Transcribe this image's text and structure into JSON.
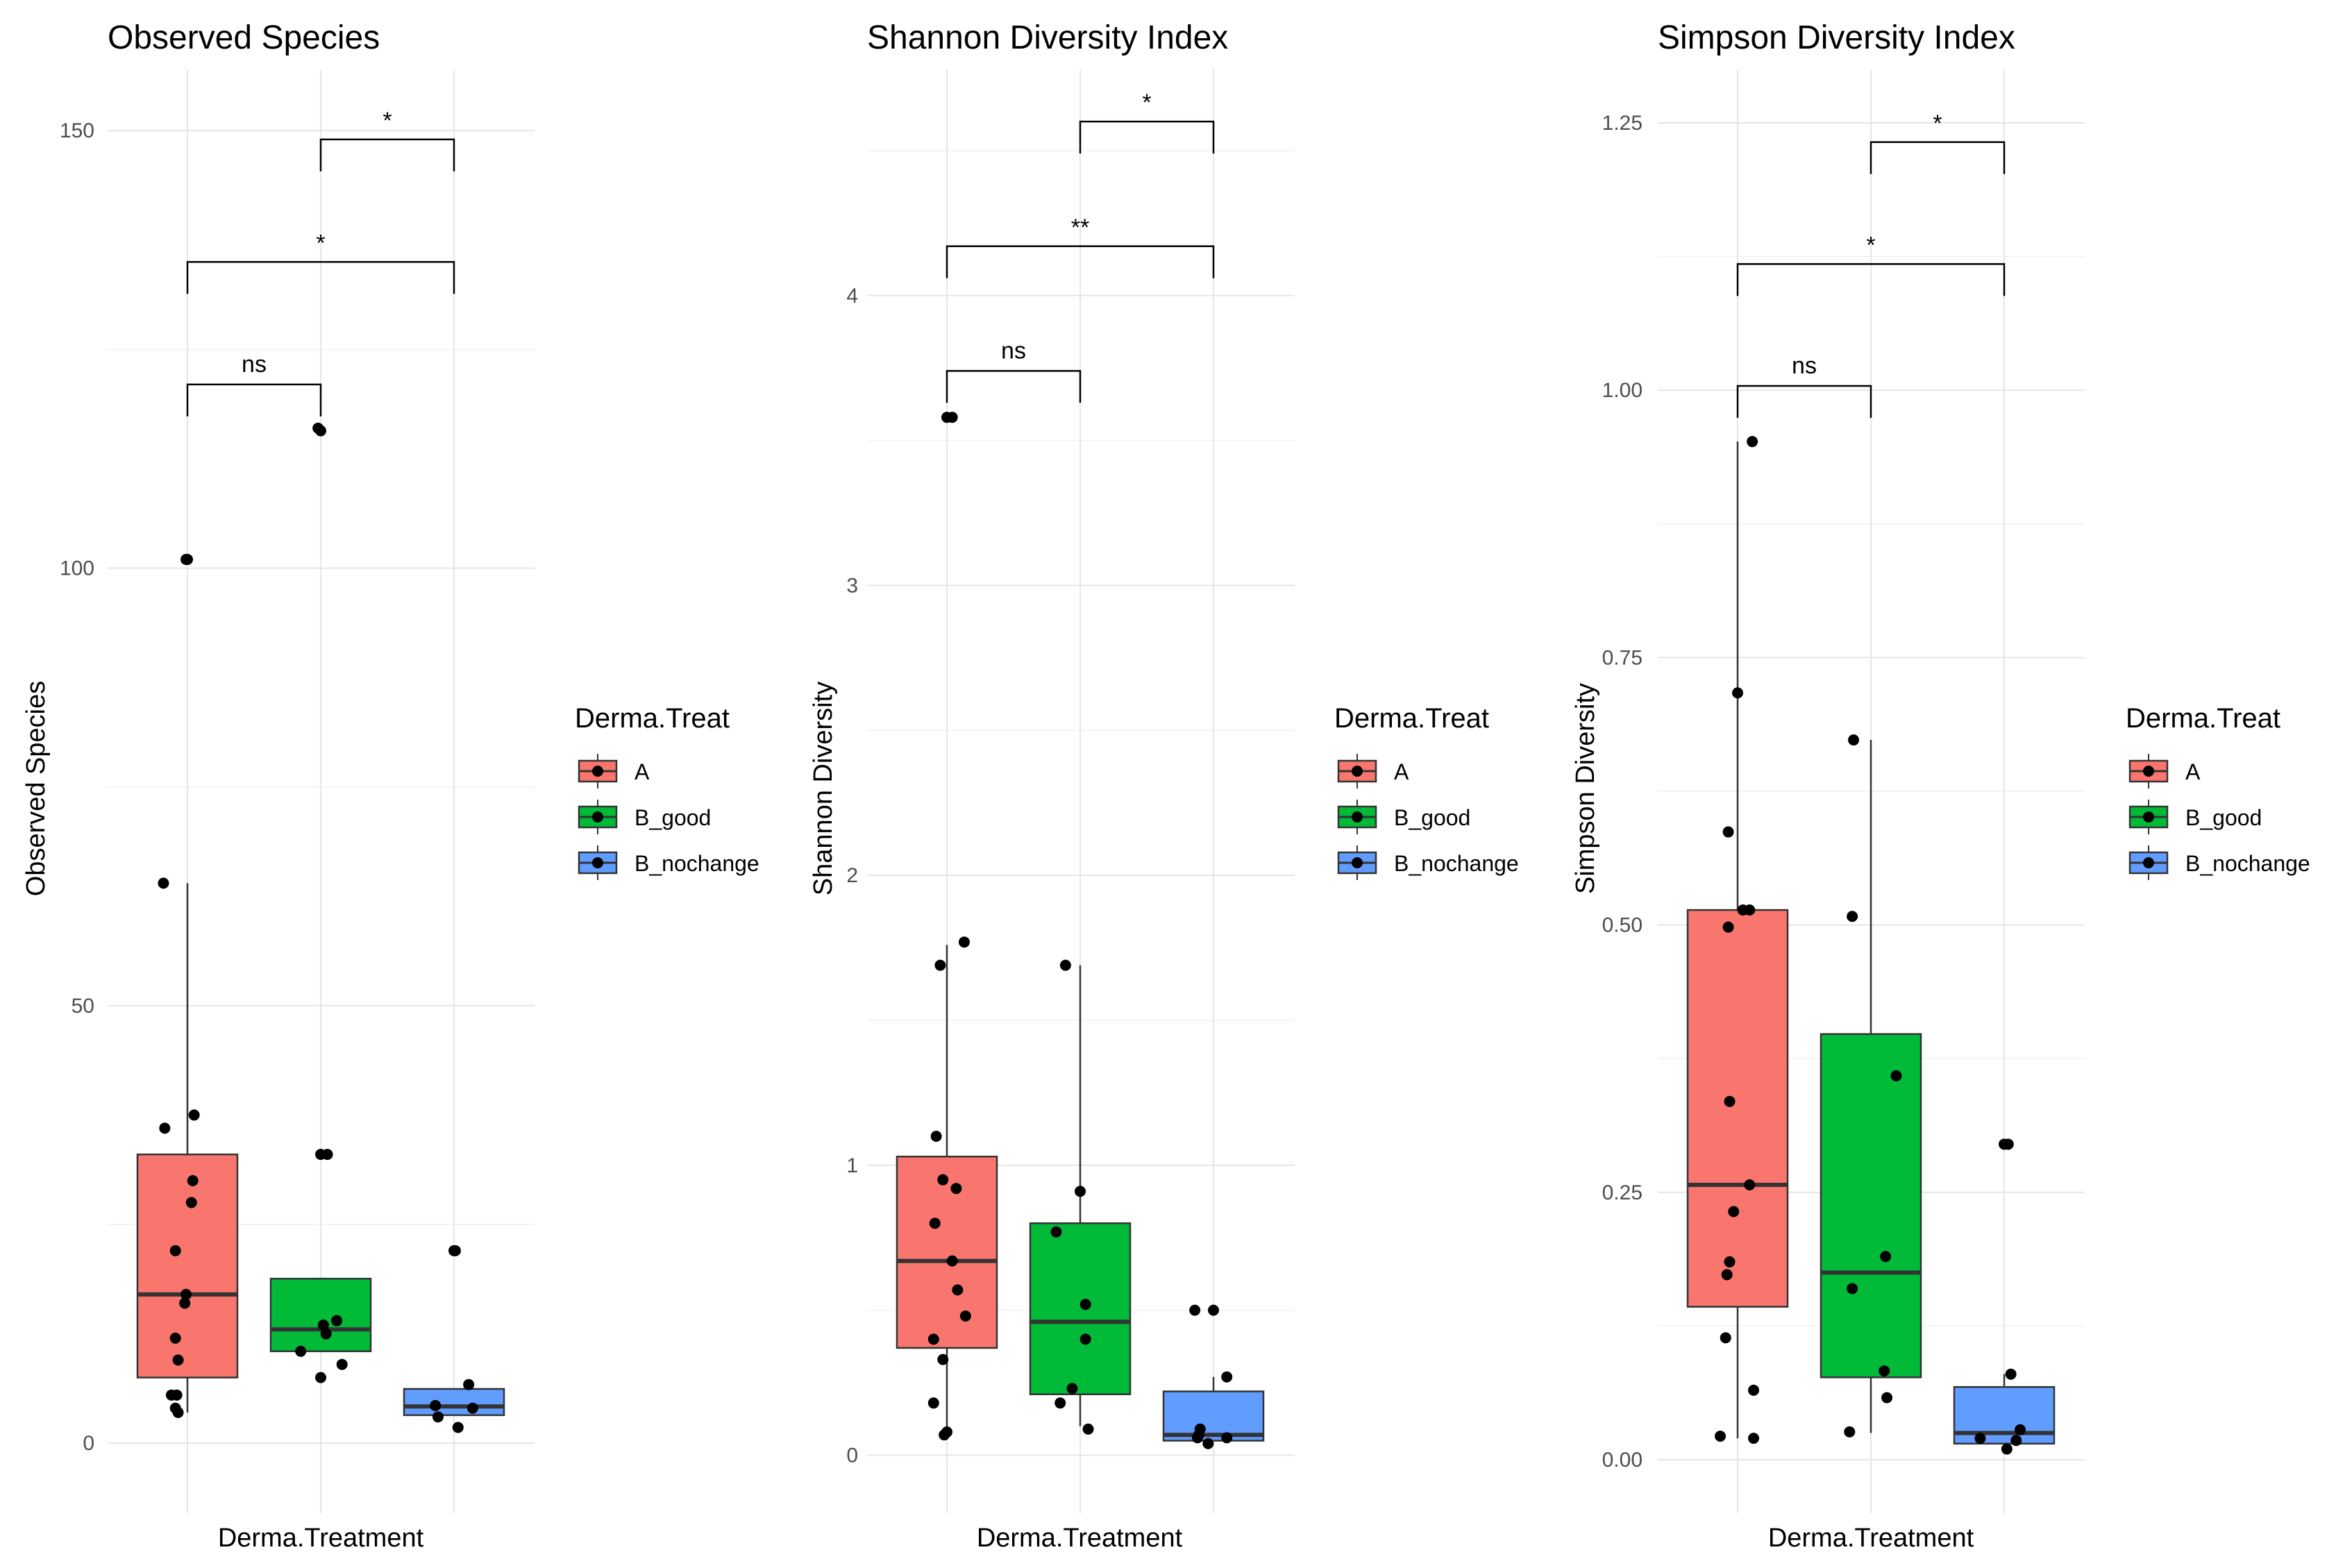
{
  "legend": {
    "title": "Derma.Treat",
    "entries": [
      "A",
      "B_good",
      "B_nochange"
    ],
    "colors": [
      "#F8766D",
      "#00BA38",
      "#619CFF"
    ]
  },
  "chart_data": [
    {
      "type": "box",
      "title": "Observed Species",
      "xlabel": "Derma.Treatment",
      "ylabel": "Observed Species",
      "ylim": [
        -8,
        157
      ],
      "yticks": [
        0,
        50,
        100,
        150
      ],
      "tick_labels": [
        "0",
        "50",
        "100",
        "150"
      ],
      "groups": [
        "A",
        "B_good",
        "B_nochange"
      ],
      "boxes": [
        {
          "group": "A",
          "lower": 3.5,
          "q1": 7.5,
          "median": 17,
          "q3": 33,
          "upper": 64
        },
        {
          "group": "B_good",
          "lower": 10.5,
          "q1": 10.5,
          "median": 13,
          "q3": 18.8,
          "upper": 18.8
        },
        {
          "group": "B_nochange",
          "lower": 3.2,
          "q1": 3.2,
          "median": 4.2,
          "q3": 6.2,
          "upper": 6.2
        }
      ],
      "points": [
        {
          "group": "A",
          "jitter": -0.01,
          "value": 101
        },
        {
          "group": "A",
          "jitter": 0.0,
          "value": 101
        },
        {
          "group": "A",
          "jitter": -0.18,
          "value": 64
        },
        {
          "group": "A",
          "jitter": 0.05,
          "value": 37.5
        },
        {
          "group": "A",
          "jitter": -0.17,
          "value": 36
        },
        {
          "group": "A",
          "jitter": 0.04,
          "value": 30
        },
        {
          "group": "A",
          "jitter": 0.03,
          "value": 27.5
        },
        {
          "group": "A",
          "jitter": -0.09,
          "value": 22
        },
        {
          "group": "A",
          "jitter": -0.01,
          "value": 17
        },
        {
          "group": "A",
          "jitter": -0.02,
          "value": 16
        },
        {
          "group": "A",
          "jitter": -0.09,
          "value": 12
        },
        {
          "group": "A",
          "jitter": -0.07,
          "value": 9.5
        },
        {
          "group": "A",
          "jitter": -0.12,
          "value": 5.5
        },
        {
          "group": "A",
          "jitter": -0.08,
          "value": 5.5
        },
        {
          "group": "A",
          "jitter": -0.09,
          "value": 4
        },
        {
          "group": "A",
          "jitter": -0.07,
          "value": 3.5
        },
        {
          "group": "B_good",
          "jitter": -0.02,
          "value": 116
        },
        {
          "group": "B_good",
          "jitter": 0.0,
          "value": 115.7
        },
        {
          "group": "B_good",
          "jitter": 0.0,
          "value": 33
        },
        {
          "group": "B_good",
          "jitter": 0.05,
          "value": 33
        },
        {
          "group": "B_good",
          "jitter": 0.12,
          "value": 14
        },
        {
          "group": "B_good",
          "jitter": 0.02,
          "value": 13.5
        },
        {
          "group": "B_good",
          "jitter": 0.04,
          "value": 12.5
        },
        {
          "group": "B_good",
          "jitter": -0.15,
          "value": 10.5
        },
        {
          "group": "B_good",
          "jitter": 0.16,
          "value": 9
        },
        {
          "group": "B_good",
          "jitter": 0.0,
          "value": 7.5
        },
        {
          "group": "B_nochange",
          "jitter": 0.0,
          "value": 22
        },
        {
          "group": "B_nochange",
          "jitter": 0.01,
          "value": 22
        },
        {
          "group": "B_nochange",
          "jitter": 0.11,
          "value": 6.7
        },
        {
          "group": "B_nochange",
          "jitter": -0.14,
          "value": 4.3
        },
        {
          "group": "B_nochange",
          "jitter": 0.14,
          "value": 4
        },
        {
          "group": "B_nochange",
          "jitter": -0.12,
          "value": 3
        },
        {
          "group": "B_nochange",
          "jitter": 0.03,
          "value": 1.8
        }
      ],
      "comparisons": [
        {
          "from": "A",
          "to": "B_good",
          "y": 121,
          "label": "ns"
        },
        {
          "from": "A",
          "to": "B_nochange",
          "y": 135,
          "label": "*"
        },
        {
          "from": "B_good",
          "to": "B_nochange",
          "y": 149,
          "label": "*"
        }
      ]
    },
    {
      "type": "box",
      "title": "Shannon Diversity Index",
      "xlabel": "Derma.Treatment",
      "ylabel": "Shannon Diversity",
      "ylim": [
        -0.2,
        4.78
      ],
      "yticks": [
        0,
        1,
        2,
        3,
        4
      ],
      "tick_labels": [
        "0",
        "1",
        "2",
        "3",
        "4"
      ],
      "groups": [
        "A",
        "B_good",
        "B_nochange"
      ],
      "boxes": [
        {
          "group": "A",
          "lower": 0.07,
          "q1": 0.37,
          "median": 0.67,
          "q3": 1.03,
          "upper": 1.76
        },
        {
          "group": "B_good",
          "lower": 0.1,
          "q1": 0.21,
          "median": 0.46,
          "q3": 0.8,
          "upper": 1.69
        },
        {
          "group": "B_nochange",
          "lower": 0.05,
          "q1": 0.05,
          "median": 0.07,
          "q3": 0.22,
          "upper": 0.27
        }
      ],
      "points": [
        {
          "group": "A",
          "jitter": 0.0,
          "value": 3.58
        },
        {
          "group": "A",
          "jitter": 0.04,
          "value": 3.58
        },
        {
          "group": "A",
          "jitter": 0.13,
          "value": 1.77
        },
        {
          "group": "A",
          "jitter": -0.05,
          "value": 1.69
        },
        {
          "group": "A",
          "jitter": -0.08,
          "value": 1.1
        },
        {
          "group": "A",
          "jitter": -0.03,
          "value": 0.95
        },
        {
          "group": "A",
          "jitter": 0.07,
          "value": 0.92
        },
        {
          "group": "A",
          "jitter": -0.09,
          "value": 0.8
        },
        {
          "group": "A",
          "jitter": 0.04,
          "value": 0.67
        },
        {
          "group": "A",
          "jitter": 0.08,
          "value": 0.57
        },
        {
          "group": "A",
          "jitter": 0.14,
          "value": 0.48
        },
        {
          "group": "A",
          "jitter": -0.1,
          "value": 0.4
        },
        {
          "group": "A",
          "jitter": -0.03,
          "value": 0.33
        },
        {
          "group": "A",
          "jitter": -0.1,
          "value": 0.18
        },
        {
          "group": "A",
          "jitter": 0.0,
          "value": 0.08
        },
        {
          "group": "A",
          "jitter": -0.02,
          "value": 0.07
        },
        {
          "group": "B_good",
          "jitter": -0.11,
          "value": 1.69
        },
        {
          "group": "B_good",
          "jitter": 0.0,
          "value": 0.91
        },
        {
          "group": "B_good",
          "jitter": -0.18,
          "value": 0.77
        },
        {
          "group": "B_good",
          "jitter": 0.04,
          "value": 0.52
        },
        {
          "group": "B_good",
          "jitter": 0.04,
          "value": 0.4
        },
        {
          "group": "B_good",
          "jitter": -0.06,
          "value": 0.23
        },
        {
          "group": "B_good",
          "jitter": -0.15,
          "value": 0.18
        },
        {
          "group": "B_good",
          "jitter": 0.06,
          "value": 0.09
        },
        {
          "group": "B_nochange",
          "jitter": -0.14,
          "value": 0.5
        },
        {
          "group": "B_nochange",
          "jitter": 0.0,
          "value": 0.5
        },
        {
          "group": "B_nochange",
          "jitter": 0.1,
          "value": 0.27
        },
        {
          "group": "B_nochange",
          "jitter": -0.1,
          "value": 0.09
        },
        {
          "group": "B_nochange",
          "jitter": -0.11,
          "value": 0.07
        },
        {
          "group": "B_nochange",
          "jitter": -0.12,
          "value": 0.06
        },
        {
          "group": "B_nochange",
          "jitter": 0.1,
          "value": 0.06
        },
        {
          "group": "B_nochange",
          "jitter": -0.04,
          "value": 0.04
        }
      ],
      "comparisons": [
        {
          "from": "A",
          "to": "B_good",
          "y": 3.74,
          "label": "ns"
        },
        {
          "from": "A",
          "to": "B_nochange",
          "y": 4.17,
          "label": "**"
        },
        {
          "from": "B_good",
          "to": "B_nochange",
          "y": 4.6,
          "label": "*"
        }
      ]
    },
    {
      "type": "box",
      "title": "Simpson Diversity Index",
      "xlabel": "Derma.Treatment",
      "ylabel": "Simpson Diversity",
      "ylim": [
        -0.05,
        1.3
      ],
      "yticks": [
        0,
        0.25,
        0.5,
        0.75,
        1,
        1.25
      ],
      "tick_labels": [
        "0.00",
        "0.25",
        "0.50",
        "0.75",
        "1.00",
        "1.25"
      ],
      "groups": [
        "A",
        "B_good",
        "B_nochange"
      ],
      "boxes": [
        {
          "group": "A",
          "lower": 0.02,
          "q1": 0.143,
          "median": 0.257,
          "q3": 0.514,
          "upper": 0.952
        },
        {
          "group": "B_good",
          "lower": 0.025,
          "q1": 0.077,
          "median": 0.175,
          "q3": 0.398,
          "upper": 0.673
        },
        {
          "group": "B_nochange",
          "lower": 0.015,
          "q1": 0.015,
          "median": 0.025,
          "q3": 0.068,
          "upper": 0.08
        }
      ],
      "points": [
        {
          "group": "A",
          "jitter": 0.11,
          "value": 0.952
        },
        {
          "group": "A",
          "jitter": 0.0,
          "value": 0.717
        },
        {
          "group": "A",
          "jitter": -0.07,
          "value": 0.587
        },
        {
          "group": "A",
          "jitter": 0.09,
          "value": 0.514
        },
        {
          "group": "A",
          "jitter": 0.04,
          "value": 0.514
        },
        {
          "group": "A",
          "jitter": -0.07,
          "value": 0.498
        },
        {
          "group": "A",
          "jitter": -0.06,
          "value": 0.335
        },
        {
          "group": "A",
          "jitter": 0.09,
          "value": 0.257
        },
        {
          "group": "A",
          "jitter": -0.03,
          "value": 0.232
        },
        {
          "group": "A",
          "jitter": -0.06,
          "value": 0.185
        },
        {
          "group": "A",
          "jitter": -0.08,
          "value": 0.173
        },
        {
          "group": "A",
          "jitter": -0.09,
          "value": 0.114
        },
        {
          "group": "A",
          "jitter": 0.12,
          "value": 0.065
        },
        {
          "group": "A",
          "jitter": 0.12,
          "value": 0.02
        },
        {
          "group": "A",
          "jitter": -0.13,
          "value": 0.022
        },
        {
          "group": "B_good",
          "jitter": -0.13,
          "value": 0.673
        },
        {
          "group": "B_good",
          "jitter": -0.14,
          "value": 0.508
        },
        {
          "group": "B_good",
          "jitter": 0.19,
          "value": 0.359
        },
        {
          "group": "B_good",
          "jitter": 0.11,
          "value": 0.19
        },
        {
          "group": "B_good",
          "jitter": -0.14,
          "value": 0.16
        },
        {
          "group": "B_good",
          "jitter": 0.1,
          "value": 0.083
        },
        {
          "group": "B_good",
          "jitter": 0.12,
          "value": 0.058
        },
        {
          "group": "B_good",
          "jitter": -0.16,
          "value": 0.026
        },
        {
          "group": "B_nochange",
          "jitter": 0.0,
          "value": 0.295
        },
        {
          "group": "B_nochange",
          "jitter": 0.03,
          "value": 0.295
        },
        {
          "group": "B_nochange",
          "jitter": 0.05,
          "value": 0.08
        },
        {
          "group": "B_nochange",
          "jitter": 0.12,
          "value": 0.028
        },
        {
          "group": "B_nochange",
          "jitter": -0.18,
          "value": 0.02
        },
        {
          "group": "B_nochange",
          "jitter": 0.09,
          "value": 0.018
        },
        {
          "group": "B_nochange",
          "jitter": 0.02,
          "value": 0.01
        }
      ],
      "comparisons": [
        {
          "from": "A",
          "to": "B_good",
          "y": 1.004,
          "label": "ns"
        },
        {
          "from": "A",
          "to": "B_nochange",
          "y": 1.118,
          "label": "*"
        },
        {
          "from": "B_good",
          "to": "B_nochange",
          "y": 1.232,
          "label": "*"
        }
      ]
    }
  ]
}
